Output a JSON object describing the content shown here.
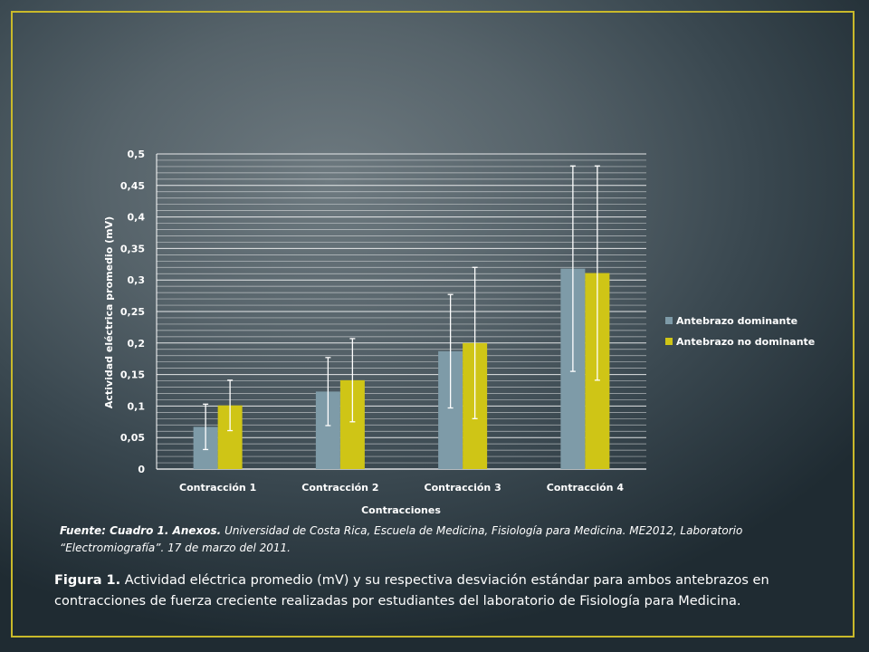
{
  "chart_data": {
    "type": "bar",
    "categories": [
      "Contracción 1",
      "Contracción 2",
      "Contracción 3",
      "Contracción 4"
    ],
    "series": [
      {
        "name": "Antebrazo dominante",
        "color": "#7e9ba8",
        "values": [
          0.067,
          0.123,
          0.187,
          0.318
        ],
        "error": [
          0.036,
          0.054,
          0.09,
          0.163
        ]
      },
      {
        "name": "Antebrazo no dominante",
        "color": "#cfc516",
        "values": [
          0.101,
          0.141,
          0.2,
          0.311
        ],
        "error": [
          0.04,
          0.066,
          0.12,
          0.17
        ]
      }
    ],
    "yticks": [
      "0",
      "0,05",
      "0,1",
      "0,15",
      "0,2",
      "0,25",
      "0,3",
      "0,35",
      "0,4",
      "0,45",
      "0,5"
    ],
    "ylim": [
      0,
      0.5
    ],
    "xlabel": "Contracciones",
    "ylabel": "Actividad eléctrica promedio (mV)",
    "grid": true,
    "legend": "right"
  },
  "source": {
    "label": "Fuente: Cuadro 1. Anexos.",
    "text": " Universidad de Costa Rica, Escuela de Medicina, Fisiología para Medicina. ME2012, Laboratorio “Electromiografía”. 17 de marzo del 2011."
  },
  "caption": {
    "label": "Figura 1.",
    "text": "  Actividad eléctrica promedio (mV) y su respectiva desviación estándar para ambos antebrazos en contracciones de fuerza creciente realizadas por estudiantes del laboratorio de Fisiología para Medicina."
  },
  "colors": {
    "frame": "#c9b92a",
    "gridline": "#ffffff",
    "text": "#ffffff"
  }
}
